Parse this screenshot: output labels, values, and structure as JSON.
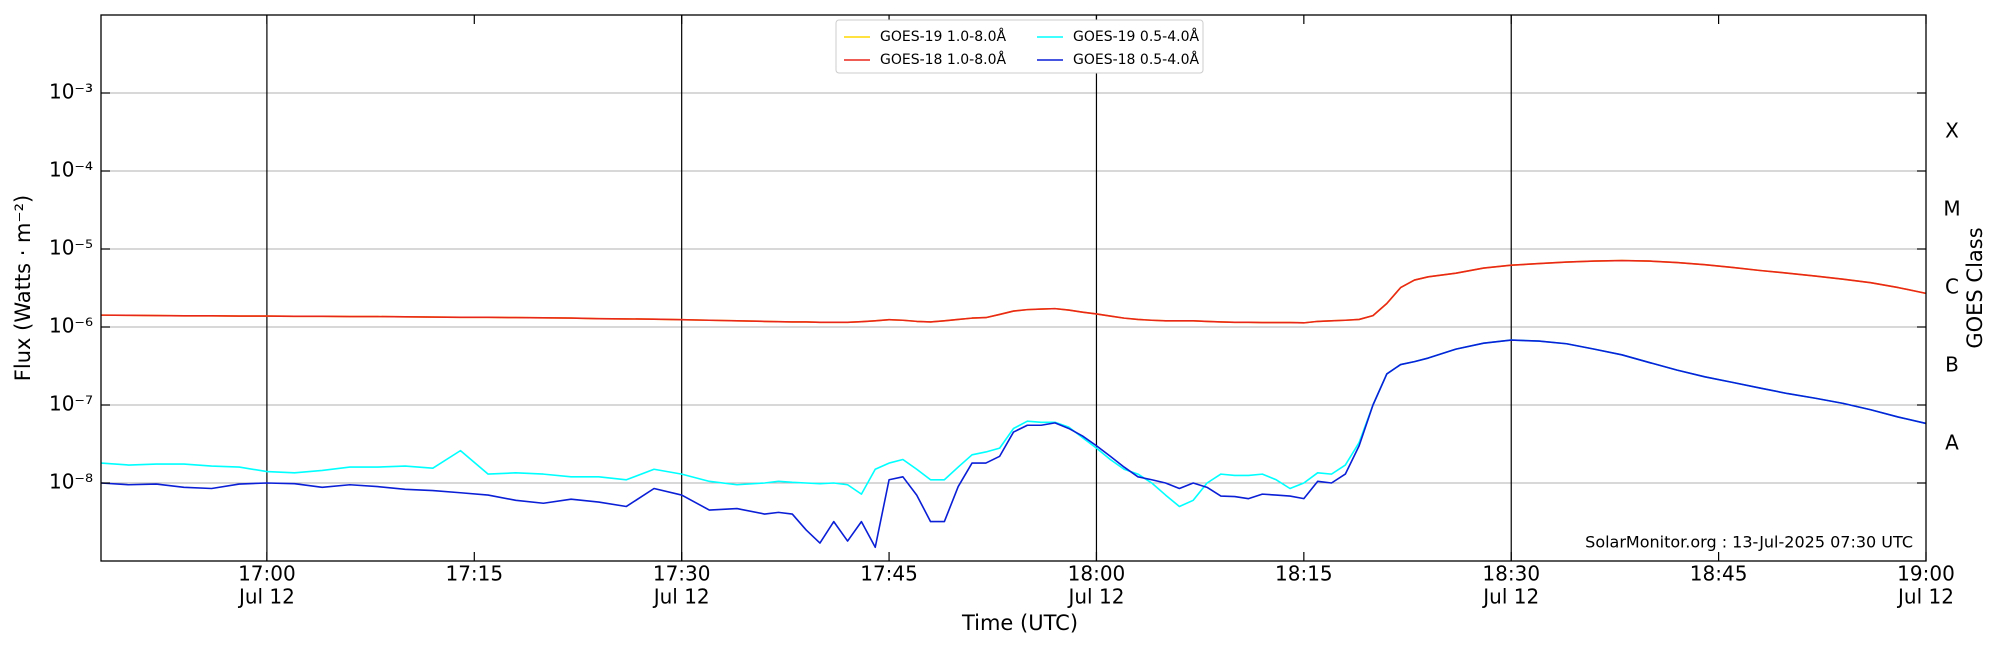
{
  "chart_data": {
    "type": "line",
    "xlabel": "Time (UTC)",
    "ylabel": "Flux (Watts · m⁻²)",
    "y2label": "GOES Class",
    "annotation": "SolarMonitor.org : 13-Jul-2025 07:30 UTC",
    "yscale": "log",
    "grid": true,
    "legend": "upper center",
    "xlim": [
      "16:48",
      "19:00"
    ],
    "xticks": [
      "17:00",
      "17:15",
      "17:30",
      "17:45",
      "18:00",
      "18:15",
      "18:30",
      "18:45",
      "19:00"
    ],
    "xtick_dates": [
      "Jul 12",
      null,
      "Jul 12",
      null,
      "Jul 12",
      null,
      "Jul 12",
      null,
      "Jul 12"
    ],
    "vlines": [
      "17:00",
      "17:30",
      "18:00",
      "18:30"
    ],
    "ylim": [
      1e-09,
      0.01
    ],
    "yticks": [
      {
        "value": 1e-08,
        "label": "10⁻⁸"
      },
      {
        "value": 1e-07,
        "label": "10⁻⁷"
      },
      {
        "value": 1e-06,
        "label": "10⁻⁶"
      },
      {
        "value": 1e-05,
        "label": "10⁻⁵"
      },
      {
        "value": 0.0001,
        "label": "10⁻⁴"
      },
      {
        "value": 0.001,
        "label": "10⁻³"
      }
    ],
    "goes_classes": {
      "labels": [
        "A",
        "B",
        "C",
        "M",
        "X"
      ],
      "bounds": [
        1e-08,
        1e-07,
        1e-06,
        1e-05,
        0.0001,
        0.001
      ]
    },
    "x": [
      "16:48",
      "16:50",
      "16:52",
      "16:54",
      "16:56",
      "16:58",
      "17:00",
      "17:02",
      "17:04",
      "17:06",
      "17:08",
      "17:10",
      "17:12",
      "17:14",
      "17:16",
      "17:18",
      "17:20",
      "17:22",
      "17:24",
      "17:26",
      "17:28",
      "17:30",
      "17:32",
      "17:34",
      "17:36",
      "17:37",
      "17:38",
      "17:39",
      "17:40",
      "17:41",
      "17:42",
      "17:43",
      "17:44",
      "17:45",
      "17:46",
      "17:47",
      "17:48",
      "17:49",
      "17:50",
      "17:51",
      "17:52",
      "17:53",
      "17:54",
      "17:55",
      "17:56",
      "17:57",
      "17:58",
      "17:59",
      "18:00",
      "18:01",
      "18:02",
      "18:03",
      "18:04",
      "18:05",
      "18:06",
      "18:07",
      "18:08",
      "18:09",
      "18:10",
      "18:11",
      "18:12",
      "18:13",
      "18:14",
      "18:15",
      "18:16",
      "18:17",
      "18:18",
      "18:19",
      "18:20",
      "18:21",
      "18:22",
      "18:23",
      "18:24",
      "18:26",
      "18:28",
      "18:30",
      "18:32",
      "18:34",
      "18:36",
      "18:38",
      "18:40",
      "18:42",
      "18:44",
      "18:46",
      "18:48",
      "18:50",
      "18:52",
      "18:54",
      "18:56",
      "18:58",
      "19:00"
    ],
    "series": [
      {
        "name": "GOES-19 1.0-8.0Å",
        "color": "#ffd700",
        "values": [
          1.42e-06,
          1.41e-06,
          1.4e-06,
          1.39e-06,
          1.39e-06,
          1.38e-06,
          1.38e-06,
          1.37e-06,
          1.37e-06,
          1.36e-06,
          1.36e-06,
          1.35e-06,
          1.34e-06,
          1.33e-06,
          1.33e-06,
          1.32e-06,
          1.31e-06,
          1.3e-06,
          1.28e-06,
          1.27e-06,
          1.26e-06,
          1.24e-06,
          1.22e-06,
          1.2e-06,
          1.18e-06,
          1.17e-06,
          1.16e-06,
          1.16e-06,
          1.15e-06,
          1.15e-06,
          1.15e-06,
          1.17e-06,
          1.2e-06,
          1.24e-06,
          1.22e-06,
          1.18e-06,
          1.16e-06,
          1.2e-06,
          1.25e-06,
          1.3e-06,
          1.32e-06,
          1.45e-06,
          1.6e-06,
          1.67e-06,
          1.7e-06,
          1.72e-06,
          1.65e-06,
          1.55e-06,
          1.47e-06,
          1.38e-06,
          1.3e-06,
          1.25e-06,
          1.22e-06,
          1.2e-06,
          1.2e-06,
          1.2e-06,
          1.18e-06,
          1.16e-06,
          1.15e-06,
          1.15e-06,
          1.14e-06,
          1.14e-06,
          1.14e-06,
          1.13e-06,
          1.18e-06,
          1.2e-06,
          1.22e-06,
          1.25e-06,
          1.4e-06,
          2e-06,
          3.2e-06,
          4e-06,
          4.4e-06,
          4.9e-06,
          5.7e-06,
          6.2e-06,
          6.5e-06,
          6.8e-06,
          7e-06,
          7.1e-06,
          7e-06,
          6.7e-06,
          6.3e-06,
          5.8e-06,
          5.3e-06,
          4.9e-06,
          4.5e-06,
          4.1e-06,
          3.7e-06,
          3.2e-06,
          2.7e-06
        ]
      },
      {
        "name": "GOES-18 1.0-8.0Å",
        "color": "#e8261a",
        "values": [
          1.42e-06,
          1.41e-06,
          1.4e-06,
          1.39e-06,
          1.39e-06,
          1.38e-06,
          1.38e-06,
          1.37e-06,
          1.37e-06,
          1.36e-06,
          1.36e-06,
          1.35e-06,
          1.34e-06,
          1.33e-06,
          1.33e-06,
          1.32e-06,
          1.31e-06,
          1.3e-06,
          1.28e-06,
          1.27e-06,
          1.26e-06,
          1.24e-06,
          1.22e-06,
          1.2e-06,
          1.18e-06,
          1.17e-06,
          1.16e-06,
          1.16e-06,
          1.15e-06,
          1.15e-06,
          1.15e-06,
          1.17e-06,
          1.2e-06,
          1.24e-06,
          1.22e-06,
          1.18e-06,
          1.16e-06,
          1.2e-06,
          1.25e-06,
          1.3e-06,
          1.32e-06,
          1.45e-06,
          1.6e-06,
          1.67e-06,
          1.7e-06,
          1.72e-06,
          1.65e-06,
          1.55e-06,
          1.47e-06,
          1.38e-06,
          1.3e-06,
          1.25e-06,
          1.22e-06,
          1.2e-06,
          1.2e-06,
          1.2e-06,
          1.18e-06,
          1.16e-06,
          1.15e-06,
          1.15e-06,
          1.14e-06,
          1.14e-06,
          1.14e-06,
          1.13e-06,
          1.18e-06,
          1.2e-06,
          1.22e-06,
          1.25e-06,
          1.4e-06,
          2e-06,
          3.2e-06,
          4e-06,
          4.4e-06,
          4.9e-06,
          5.7e-06,
          6.2e-06,
          6.5e-06,
          6.8e-06,
          7e-06,
          7.1e-06,
          7e-06,
          6.7e-06,
          6.3e-06,
          5.8e-06,
          5.3e-06,
          4.9e-06,
          4.5e-06,
          4.1e-06,
          3.7e-06,
          3.2e-06,
          2.7e-06
        ]
      },
      {
        "name": "GOES-19 0.5-4.0Å",
        "color": "#00ffff",
        "values": [
          1.8e-08,
          1.7e-08,
          1.75e-08,
          1.75e-08,
          1.65e-08,
          1.6e-08,
          1.4e-08,
          1.35e-08,
          1.45e-08,
          1.6e-08,
          1.6e-08,
          1.65e-08,
          1.55e-08,
          2.6e-08,
          1.3e-08,
          1.35e-08,
          1.3e-08,
          1.2e-08,
          1.2e-08,
          1.1e-08,
          1.5e-08,
          1.3e-08,
          1.05e-08,
          9.5e-09,
          1e-08,
          1.05e-08,
          1.02e-08,
          1e-08,
          9.8e-09,
          1e-08,
          9.5e-09,
          7.2e-09,
          1.5e-08,
          1.8e-08,
          2e-08,
          1.5e-08,
          1.1e-08,
          1.1e-08,
          1.6e-08,
          2.3e-08,
          2.5e-08,
          2.8e-08,
          5e-08,
          6.2e-08,
          6e-08,
          6e-08,
          5.2e-08,
          3.8e-08,
          2.8e-08,
          2e-08,
          1.5e-08,
          1.3e-08,
          1e-08,
          7e-09,
          5e-09,
          6e-09,
          1e-08,
          1.3e-08,
          1.25e-08,
          1.25e-08,
          1.3e-08,
          1.1e-08,
          8.5e-09,
          1e-08,
          1.35e-08,
          1.3e-08,
          1.7e-08,
          3.3e-08,
          1e-07,
          2.5e-07,
          3.3e-07,
          3.6e-07,
          4e-07,
          5.2e-07,
          6.2e-07,
          6.8e-07,
          6.6e-07,
          6.1e-07,
          5.2e-07,
          4.4e-07,
          3.5e-07,
          2.8e-07,
          2.3e-07,
          1.95e-07,
          1.65e-07,
          1.4e-07,
          1.22e-07,
          1.05e-07,
          8.7e-08,
          7e-08,
          5.8e-08
        ]
      },
      {
        "name": "GOES-18 0.5-4.0Å",
        "color": "#0a1fd6",
        "values": [
          1e-08,
          9.5e-09,
          9.7e-09,
          8.8e-09,
          8.5e-09,
          9.7e-09,
          1e-08,
          9.8e-09,
          8.8e-09,
          9.5e-09,
          9e-09,
          8.3e-09,
          8e-09,
          7.5e-09,
          7e-09,
          6e-09,
          5.5e-09,
          6.2e-09,
          5.7e-09,
          5e-09,
          8.5e-09,
          7e-09,
          4.5e-09,
          4.7e-09,
          4e-09,
          4.2e-09,
          4e-09,
          2.5e-09,
          1.7e-09,
          3.2e-09,
          1.8e-09,
          3.2e-09,
          1.5e-09,
          1.1e-08,
          1.2e-08,
          7e-09,
          3.2e-09,
          3.2e-09,
          9e-09,
          1.8e-08,
          1.8e-08,
          2.2e-08,
          4.5e-08,
          5.5e-08,
          5.5e-08,
          5.9e-08,
          5e-08,
          4e-08,
          3e-08,
          2.2e-08,
          1.6e-08,
          1.2e-08,
          1.1e-08,
          1e-08,
          8.5e-09,
          1e-08,
          8.8e-09,
          6.8e-09,
          6.7e-09,
          6.3e-09,
          7.2e-09,
          7e-09,
          6.8e-09,
          6.3e-09,
          1.05e-08,
          1e-08,
          1.3e-08,
          3e-08,
          1e-07,
          2.5e-07,
          3.3e-07,
          3.6e-07,
          4e-07,
          5.2e-07,
          6.2e-07,
          6.8e-07,
          6.6e-07,
          6.1e-07,
          5.2e-07,
          4.4e-07,
          3.5e-07,
          2.8e-07,
          2.3e-07,
          1.95e-07,
          1.65e-07,
          1.4e-07,
          1.22e-07,
          1.05e-07,
          8.7e-08,
          7e-08,
          5.8e-08
        ]
      }
    ]
  }
}
